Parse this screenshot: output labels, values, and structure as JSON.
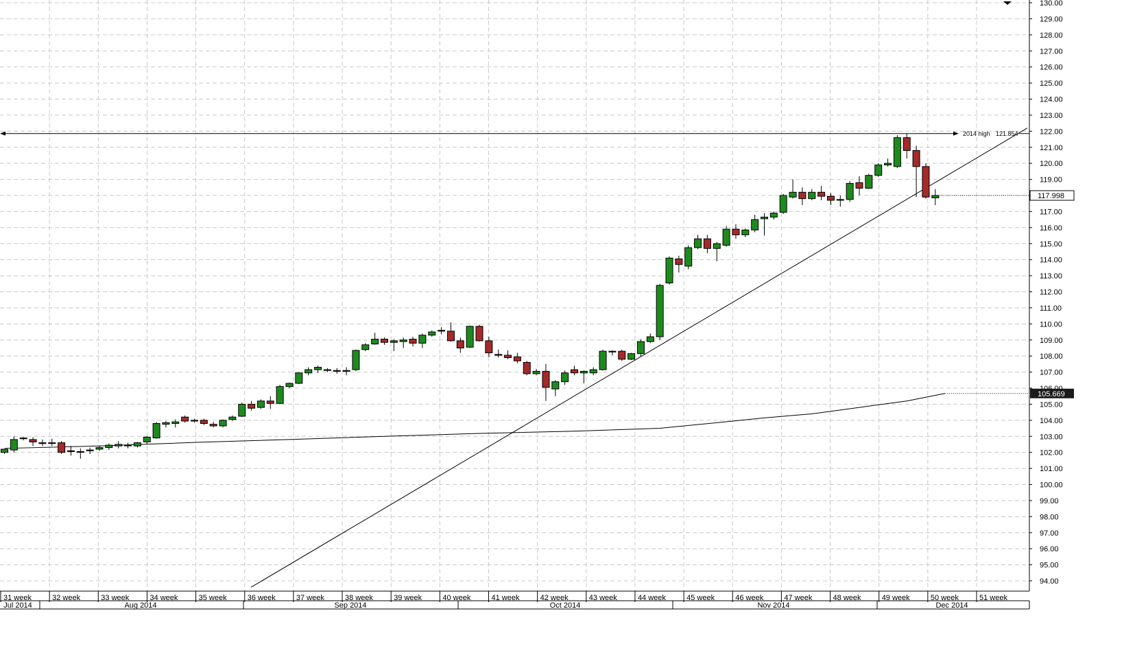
{
  "chart_data": {
    "type": "candlestick",
    "ylim": [
      93.5,
      130.2
    ],
    "y_ticks": [
      "130.00",
      "129.00",
      "128.00",
      "127.00",
      "126.00",
      "125.00",
      "124.00",
      "123.00",
      "122.00",
      "121.00",
      "120.00",
      "119.00",
      "118.00",
      "117.00",
      "116.00",
      "115.00",
      "114.00",
      "113.00",
      "112.00",
      "111.00",
      "110.00",
      "109.00",
      "108.00",
      "107.00",
      "106.00",
      "105.00",
      "104.00",
      "103.00",
      "102.00",
      "101.00",
      "100.00",
      "99.00",
      "98.00",
      "97.00",
      "96.00",
      "95.00",
      "94.00"
    ],
    "weeks": [
      "31 week",
      "32 week",
      "33 week",
      "34 week",
      "35 week",
      "36 week",
      "37 week",
      "38 week",
      "39 week",
      "40 week",
      "41 week",
      "42 week",
      "43 week",
      "44 week",
      "45 week",
      "46 week",
      "47 week",
      "48 week",
      "49 week",
      "50 week",
      "51 week"
    ],
    "months": [
      "Jul 2014",
      "Aug 2014",
      "Sep 2014",
      "Oct 2014",
      "Nov 2014",
      "Dec 2014"
    ],
    "colors": {
      "up": "#1e8a1e",
      "down": "#a52a2a",
      "line": "#000000",
      "grid": "#c8c8c8"
    },
    "candles": [
      {
        "o": 102.0,
        "h": 102.2,
        "l": 101.9,
        "c": 102.2
      },
      {
        "o": 102.15,
        "h": 103.0,
        "l": 102.0,
        "c": 102.8
      },
      {
        "o": 102.85,
        "h": 102.95,
        "l": 102.75,
        "c": 102.9
      },
      {
        "o": 102.8,
        "h": 102.95,
        "l": 102.4,
        "c": 102.65
      },
      {
        "o": 102.6,
        "h": 102.8,
        "l": 102.4,
        "c": 102.55
      },
      {
        "o": 102.6,
        "h": 102.85,
        "l": 102.4,
        "c": 102.55
      },
      {
        "o": 102.6,
        "h": 102.7,
        "l": 101.9,
        "c": 102.0
      },
      {
        "o": 102.1,
        "h": 102.4,
        "l": 101.8,
        "c": 102.05
      },
      {
        "o": 102.05,
        "h": 102.25,
        "l": 101.6,
        "c": 102.0
      },
      {
        "o": 102.1,
        "h": 102.3,
        "l": 101.9,
        "c": 102.15
      },
      {
        "o": 102.2,
        "h": 102.4,
        "l": 102.1,
        "c": 102.3
      },
      {
        "o": 102.3,
        "h": 102.55,
        "l": 102.15,
        "c": 102.45
      },
      {
        "o": 102.4,
        "h": 102.7,
        "l": 102.25,
        "c": 102.5
      },
      {
        "o": 102.45,
        "h": 102.6,
        "l": 102.25,
        "c": 102.45
      },
      {
        "o": 102.4,
        "h": 102.65,
        "l": 102.3,
        "c": 102.6
      },
      {
        "o": 102.65,
        "h": 103.0,
        "l": 102.5,
        "c": 102.95
      },
      {
        "o": 102.9,
        "h": 103.9,
        "l": 102.85,
        "c": 103.8
      },
      {
        "o": 103.75,
        "h": 103.95,
        "l": 103.55,
        "c": 103.85
      },
      {
        "o": 103.8,
        "h": 104.05,
        "l": 103.55,
        "c": 103.9
      },
      {
        "o": 104.2,
        "h": 104.3,
        "l": 103.85,
        "c": 103.95
      },
      {
        "o": 104.0,
        "h": 104.1,
        "l": 103.85,
        "c": 103.95
      },
      {
        "o": 104.0,
        "h": 104.1,
        "l": 103.7,
        "c": 103.8
      },
      {
        "o": 103.75,
        "h": 103.9,
        "l": 103.55,
        "c": 103.65
      },
      {
        "o": 103.65,
        "h": 104.05,
        "l": 103.55,
        "c": 104.0
      },
      {
        "o": 104.05,
        "h": 104.3,
        "l": 103.95,
        "c": 104.2
      },
      {
        "o": 104.25,
        "h": 105.1,
        "l": 104.2,
        "c": 105.0
      },
      {
        "o": 105.0,
        "h": 105.2,
        "l": 104.6,
        "c": 104.75
      },
      {
        "o": 104.8,
        "h": 105.3,
        "l": 104.7,
        "c": 105.2
      },
      {
        "o": 105.2,
        "h": 105.5,
        "l": 104.7,
        "c": 105.05
      },
      {
        "o": 105.05,
        "h": 106.2,
        "l": 105.0,
        "c": 106.1
      },
      {
        "o": 106.1,
        "h": 106.35,
        "l": 106.0,
        "c": 106.3
      },
      {
        "o": 106.3,
        "h": 107.0,
        "l": 106.25,
        "c": 106.95
      },
      {
        "o": 106.95,
        "h": 107.3,
        "l": 106.8,
        "c": 107.15
      },
      {
        "o": 107.15,
        "h": 107.4,
        "l": 106.95,
        "c": 107.3
      },
      {
        "o": 107.15,
        "h": 107.25,
        "l": 107.0,
        "c": 107.1
      },
      {
        "o": 107.1,
        "h": 107.25,
        "l": 106.9,
        "c": 107.05
      },
      {
        "o": 107.05,
        "h": 107.3,
        "l": 106.8,
        "c": 107.1
      },
      {
        "o": 107.15,
        "h": 108.4,
        "l": 107.05,
        "c": 108.35
      },
      {
        "o": 108.4,
        "h": 108.8,
        "l": 108.3,
        "c": 108.7
      },
      {
        "o": 108.75,
        "h": 109.45,
        "l": 108.7,
        "c": 109.05
      },
      {
        "o": 109.05,
        "h": 109.15,
        "l": 108.7,
        "c": 108.85
      },
      {
        "o": 108.85,
        "h": 109.05,
        "l": 108.3,
        "c": 108.95
      },
      {
        "o": 108.9,
        "h": 109.15,
        "l": 108.5,
        "c": 109.0
      },
      {
        "o": 109.05,
        "h": 109.2,
        "l": 108.6,
        "c": 108.8
      },
      {
        "o": 108.8,
        "h": 109.4,
        "l": 108.5,
        "c": 109.3
      },
      {
        "o": 109.3,
        "h": 109.6,
        "l": 109.2,
        "c": 109.5
      },
      {
        "o": 109.55,
        "h": 109.8,
        "l": 109.35,
        "c": 109.6
      },
      {
        "o": 109.55,
        "h": 110.1,
        "l": 108.9,
        "c": 108.95
      },
      {
        "o": 108.95,
        "h": 109.15,
        "l": 108.2,
        "c": 108.5
      },
      {
        "o": 108.55,
        "h": 109.9,
        "l": 108.5,
        "c": 109.85
      },
      {
        "o": 109.85,
        "h": 109.95,
        "l": 108.9,
        "c": 108.95
      },
      {
        "o": 108.95,
        "h": 109.2,
        "l": 107.95,
        "c": 108.2
      },
      {
        "o": 108.1,
        "h": 108.4,
        "l": 107.9,
        "c": 108.05
      },
      {
        "o": 108.05,
        "h": 108.35,
        "l": 107.8,
        "c": 107.9
      },
      {
        "o": 107.95,
        "h": 108.2,
        "l": 107.55,
        "c": 107.7
      },
      {
        "o": 107.6,
        "h": 107.7,
        "l": 106.8,
        "c": 106.9
      },
      {
        "o": 106.9,
        "h": 107.2,
        "l": 106.8,
        "c": 107.05
      },
      {
        "o": 107.05,
        "h": 107.5,
        "l": 105.2,
        "c": 106.05
      },
      {
        "o": 105.95,
        "h": 106.5,
        "l": 105.5,
        "c": 106.4
      },
      {
        "o": 106.4,
        "h": 107.1,
        "l": 106.2,
        "c": 106.95
      },
      {
        "o": 107.15,
        "h": 107.4,
        "l": 106.8,
        "c": 106.95
      },
      {
        "o": 106.95,
        "h": 107.1,
        "l": 106.3,
        "c": 107.05
      },
      {
        "o": 106.95,
        "h": 107.3,
        "l": 106.8,
        "c": 107.15
      },
      {
        "o": 107.15,
        "h": 108.4,
        "l": 107.1,
        "c": 108.3
      },
      {
        "o": 108.3,
        "h": 108.35,
        "l": 108.05,
        "c": 108.25
      },
      {
        "o": 108.3,
        "h": 108.4,
        "l": 107.7,
        "c": 107.8
      },
      {
        "o": 107.8,
        "h": 108.2,
        "l": 107.75,
        "c": 108.15
      },
      {
        "o": 108.15,
        "h": 109.05,
        "l": 108.0,
        "c": 108.9
      },
      {
        "o": 108.9,
        "h": 109.4,
        "l": 108.8,
        "c": 109.2
      },
      {
        "o": 109.2,
        "h": 112.5,
        "l": 109.0,
        "c": 112.4
      },
      {
        "o": 112.55,
        "h": 114.2,
        "l": 112.45,
        "c": 114.1
      },
      {
        "o": 114.05,
        "h": 114.25,
        "l": 113.2,
        "c": 113.7
      },
      {
        "o": 113.6,
        "h": 114.9,
        "l": 113.4,
        "c": 114.75
      },
      {
        "o": 114.75,
        "h": 115.55,
        "l": 114.65,
        "c": 115.3
      },
      {
        "o": 115.3,
        "h": 115.55,
        "l": 114.4,
        "c": 114.7
      },
      {
        "o": 114.7,
        "h": 115.1,
        "l": 113.9,
        "c": 115.0
      },
      {
        "o": 114.9,
        "h": 116.1,
        "l": 114.8,
        "c": 115.9
      },
      {
        "o": 115.9,
        "h": 116.2,
        "l": 115.3,
        "c": 115.55
      },
      {
        "o": 115.55,
        "h": 115.95,
        "l": 115.4,
        "c": 115.85
      },
      {
        "o": 115.85,
        "h": 116.8,
        "l": 115.7,
        "c": 116.5
      },
      {
        "o": 116.55,
        "h": 116.9,
        "l": 115.5,
        "c": 116.65
      },
      {
        "o": 116.65,
        "h": 117.0,
        "l": 116.5,
        "c": 116.9
      },
      {
        "o": 116.95,
        "h": 118.1,
        "l": 116.85,
        "c": 118.0
      },
      {
        "o": 117.9,
        "h": 119.0,
        "l": 117.8,
        "c": 118.2
      },
      {
        "o": 118.2,
        "h": 118.5,
        "l": 117.4,
        "c": 117.8
      },
      {
        "o": 117.8,
        "h": 118.4,
        "l": 117.7,
        "c": 118.2
      },
      {
        "o": 118.2,
        "h": 118.6,
        "l": 117.7,
        "c": 117.95
      },
      {
        "o": 117.95,
        "h": 118.15,
        "l": 117.4,
        "c": 117.7
      },
      {
        "o": 117.7,
        "h": 118.0,
        "l": 117.3,
        "c": 117.75
      },
      {
        "o": 117.75,
        "h": 118.9,
        "l": 117.6,
        "c": 118.75
      },
      {
        "o": 118.8,
        "h": 119.2,
        "l": 118.0,
        "c": 118.45
      },
      {
        "o": 118.45,
        "h": 119.35,
        "l": 118.4,
        "c": 119.25
      },
      {
        "o": 119.25,
        "h": 120.0,
        "l": 119.15,
        "c": 119.9
      },
      {
        "o": 119.9,
        "h": 120.3,
        "l": 119.8,
        "c": 120.0
      },
      {
        "o": 119.8,
        "h": 121.75,
        "l": 119.7,
        "c": 121.6
      },
      {
        "o": 121.6,
        "h": 121.85,
        "l": 120.3,
        "c": 120.8
      },
      {
        "o": 120.8,
        "h": 121.1,
        "l": 117.9,
        "c": 119.8
      },
      {
        "o": 119.8,
        "h": 120.0,
        "l": 117.8,
        "c": 117.9
      },
      {
        "o": 117.85,
        "h": 118.4,
        "l": 117.4,
        "c": 118.0
      }
    ],
    "moving_average": [
      {
        "i": 0,
        "v": 102.25
      },
      {
        "i": 10,
        "v": 102.4
      },
      {
        "i": 20,
        "v": 102.62
      },
      {
        "i": 30,
        "v": 102.8
      },
      {
        "i": 40,
        "v": 103.0
      },
      {
        "i": 50,
        "v": 103.18
      },
      {
        "i": 60,
        "v": 103.32
      },
      {
        "i": 69,
        "v": 103.5
      },
      {
        "i": 75,
        "v": 103.85
      },
      {
        "i": 80,
        "v": 104.15
      },
      {
        "i": 85,
        "v": 104.4
      },
      {
        "i": 90,
        "v": 104.8
      },
      {
        "i": 95,
        "v": 105.2
      },
      {
        "i": 99,
        "v": 105.67
      }
    ],
    "trendline": {
      "x1_index": 25,
      "y1": 93.6,
      "x2_index": 105,
      "y2": 122.2
    },
    "annotations": {
      "high_line_value": 121.854,
      "high_label": "2014 high",
      "high_value_label": "121.854",
      "last_price": 117.998,
      "last_price_label": "117.998",
      "ma_value": 105.669,
      "ma_label": "105.669"
    }
  }
}
